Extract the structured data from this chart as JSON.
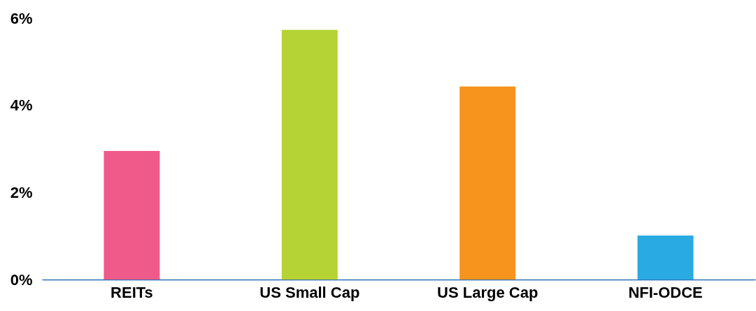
{
  "chart_data": {
    "type": "bar",
    "categories": [
      "REITs",
      "US Small Cap",
      "US Large Cap",
      "NFI-ODCE"
    ],
    "values": [
      2.95,
      5.73,
      4.43,
      1.01
    ],
    "colors": [
      "#f05a8a",
      "#b5d334",
      "#f7941d",
      "#29abe2"
    ],
    "ylim": [
      0,
      6
    ],
    "yticks": [
      {
        "value": 0,
        "label": "0%"
      },
      {
        "value": 2,
        "label": "2%"
      },
      {
        "value": 4,
        "label": "4%"
      },
      {
        "value": 6,
        "label": "6%"
      }
    ],
    "grid": false
  }
}
